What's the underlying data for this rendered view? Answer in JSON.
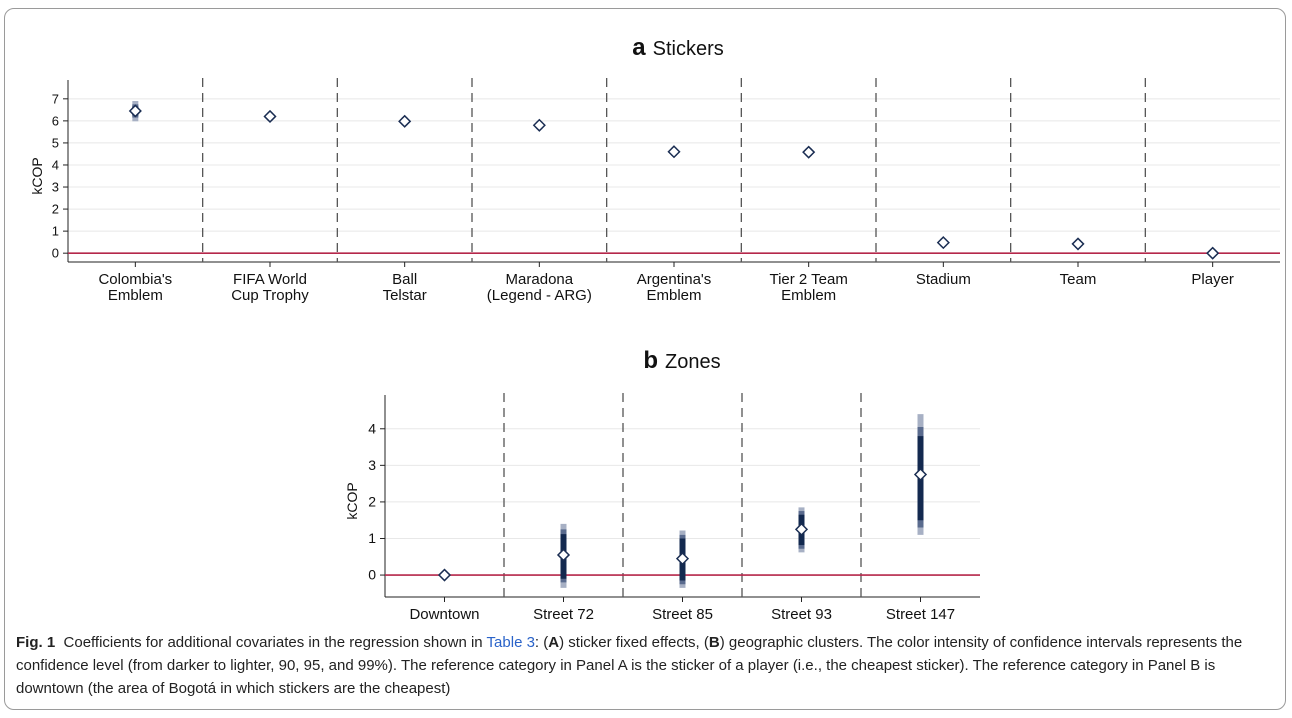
{
  "colors": {
    "reference_line": "#b5274a",
    "ci_90": "#13294f",
    "ci_95": "#5a6b8e",
    "ci_99": "#a7b0c4",
    "marker_edge": "#1a2d52",
    "separator": "#555555",
    "grid": "#e8e8e8"
  },
  "chart_data": [
    {
      "type": "scatter",
      "panel_letter": "a",
      "title": "Stickers",
      "ylabel": "kCOP",
      "xlabel": "",
      "ylim": [
        -0.4,
        7.4
      ],
      "yticks": [
        0,
        1,
        2,
        3,
        4,
        5,
        6,
        7
      ],
      "reference_y": 0,
      "grid": true,
      "legend": "none",
      "categories": [
        [
          "Colombia's",
          "Emblem"
        ],
        [
          "FIFA World",
          "Cup Trophy"
        ],
        [
          "Ball",
          "Telstar"
        ],
        [
          "Maradona",
          "(Legend - ARG)"
        ],
        [
          "Argentina's",
          "Emblem"
        ],
        [
          "Tier 2 Team",
          "Emblem"
        ],
        [
          "Stadium"
        ],
        [
          "Team"
        ],
        [
          "Player"
        ]
      ],
      "values": [
        6.45,
        6.2,
        5.98,
        5.8,
        4.6,
        4.58,
        0.48,
        0.42,
        0.0
      ],
      "ci90": [
        [
          6.25,
          6.65
        ],
        [
          6.12,
          6.28
        ],
        [
          5.9,
          6.06
        ],
        [
          5.72,
          5.88
        ],
        [
          4.52,
          4.68
        ],
        [
          4.5,
          4.66
        ],
        [
          0.4,
          0.56
        ],
        [
          0.34,
          0.5
        ],
        [
          0,
          0
        ]
      ],
      "ci95": [
        [
          6.15,
          6.75
        ],
        [
          6.08,
          6.32
        ],
        [
          5.86,
          6.1
        ],
        [
          5.68,
          5.92
        ],
        [
          4.48,
          4.72
        ],
        [
          4.46,
          4.7
        ],
        [
          0.36,
          0.6
        ],
        [
          0.3,
          0.54
        ],
        [
          0,
          0
        ]
      ],
      "ci99": [
        [
          5.98,
          6.9
        ],
        [
          6.02,
          6.38
        ],
        [
          5.8,
          6.16
        ],
        [
          5.62,
          5.98
        ],
        [
          4.42,
          4.78
        ],
        [
          4.4,
          4.76
        ],
        [
          0.3,
          0.66
        ],
        [
          0.24,
          0.6
        ],
        [
          0,
          0
        ]
      ]
    },
    {
      "type": "scatter",
      "panel_letter": "b",
      "title": "Zones",
      "ylabel": "kCOP",
      "xlabel": "",
      "ylim": [
        -0.6,
        4.65
      ],
      "yticks": [
        0,
        1,
        2,
        3,
        4
      ],
      "reference_y": 0,
      "grid": true,
      "legend": "none",
      "categories": [
        [
          "Downtown"
        ],
        [
          "Street 72"
        ],
        [
          "Street 85"
        ],
        [
          "Street 93"
        ],
        [
          "Street 147"
        ]
      ],
      "values": [
        0.0,
        0.55,
        0.45,
        1.25,
        2.75
      ],
      "ci90": [
        [
          0,
          0
        ],
        [
          -0.1,
          1.12
        ],
        [
          -0.15,
          1.0
        ],
        [
          0.82,
          1.65
        ],
        [
          1.5,
          3.8
        ]
      ],
      "ci95": [
        [
          0,
          0
        ],
        [
          -0.2,
          1.25
        ],
        [
          -0.25,
          1.1
        ],
        [
          0.72,
          1.75
        ],
        [
          1.3,
          4.05
        ]
      ],
      "ci99": [
        [
          0,
          0
        ],
        [
          -0.35,
          1.4
        ],
        [
          -0.35,
          1.22
        ],
        [
          0.62,
          1.85
        ],
        [
          1.1,
          4.4
        ]
      ]
    }
  ],
  "caption": {
    "fig_label": "Fig. 1",
    "text_1": "Coefficients for additional covariates in the regression shown in ",
    "table_ref": "Table 3",
    "text_2": ": (",
    "panel_a": "A",
    "text_3": ") sticker fixed effects, (",
    "panel_b": "B",
    "text_4": ") geographic clusters. The color intensity of confidence intervals represents the confidence level (from darker to lighter, 90, 95, and 99%). The reference category in Panel A is the sticker of a player (i.e., the cheapest sticker). The reference category in Panel B is downtown (the area of Bogotá in which stickers are the cheapest)"
  }
}
